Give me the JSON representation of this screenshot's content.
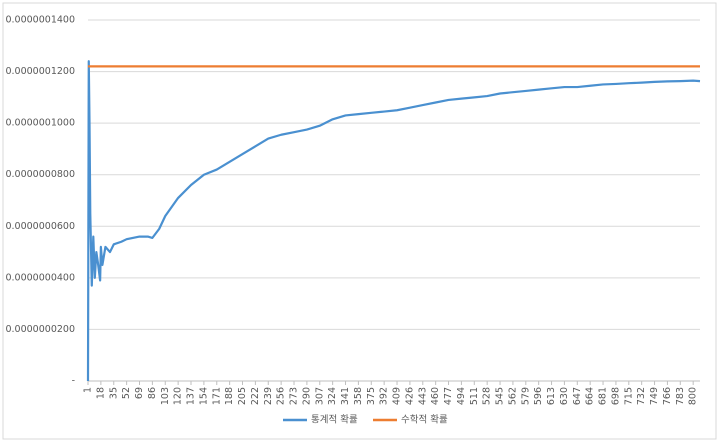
{
  "chart_data": {
    "type": "line",
    "x": [
      1,
      2,
      3,
      4,
      6,
      8,
      10,
      12,
      14,
      17,
      18,
      20,
      24,
      30,
      35,
      45,
      52,
      69,
      80,
      86,
      95,
      103,
      120,
      137,
      154,
      171,
      188,
      205,
      222,
      239,
      256,
      273,
      290,
      307,
      324,
      341,
      358,
      375,
      392,
      409,
      426,
      443,
      460,
      477,
      494,
      511,
      528,
      545,
      562,
      579,
      596,
      613,
      630,
      647,
      664,
      681,
      698,
      715,
      732,
      749,
      766,
      783,
      800,
      809
    ],
    "series": [
      {
        "name": "통계적 확률",
        "color": "#4a90d0",
        "values": [
          0,
          1.24e-07,
          1e-07,
          6.5e-08,
          3.7e-08,
          5.6e-08,
          4e-08,
          5e-08,
          4.6e-08,
          3.9e-08,
          5.2e-08,
          4.5e-08,
          5.2e-08,
          5e-08,
          5.3e-08,
          5.4e-08,
          5.5e-08,
          5.6e-08,
          5.6e-08,
          5.55e-08,
          5.9e-08,
          6.4e-08,
          7.1e-08,
          7.6e-08,
          8e-08,
          8.2e-08,
          8.5e-08,
          8.8e-08,
          9.1e-08,
          9.4e-08,
          9.55e-08,
          9.65e-08,
          9.75e-08,
          9.9e-08,
          1.015e-07,
          1.03e-07,
          1.035e-07,
          1.04e-07,
          1.045e-07,
          1.05e-07,
          1.06e-07,
          1.07e-07,
          1.08e-07,
          1.09e-07,
          1.095e-07,
          1.1e-07,
          1.105e-07,
          1.115e-07,
          1.12e-07,
          1.125e-07,
          1.13e-07,
          1.135e-07,
          1.14e-07,
          1.14e-07,
          1.145e-07,
          1.15e-07,
          1.152e-07,
          1.155e-07,
          1.157e-07,
          1.16e-07,
          1.162e-07,
          1.163e-07,
          1.165e-07,
          1.163e-07
        ]
      },
      {
        "name": "수학적 확률",
        "color": "#ed7d31",
        "values": [
          1.22e-07,
          1.22e-07,
          1.22e-07,
          1.22e-07,
          1.22e-07,
          1.22e-07,
          1.22e-07,
          1.22e-07,
          1.22e-07,
          1.22e-07,
          1.22e-07,
          1.22e-07,
          1.22e-07,
          1.22e-07,
          1.22e-07,
          1.22e-07,
          1.22e-07,
          1.22e-07,
          1.22e-07,
          1.22e-07,
          1.22e-07,
          1.22e-07,
          1.22e-07,
          1.22e-07,
          1.22e-07,
          1.22e-07,
          1.22e-07,
          1.22e-07,
          1.22e-07,
          1.22e-07,
          1.22e-07,
          1.22e-07,
          1.22e-07,
          1.22e-07,
          1.22e-07,
          1.22e-07,
          1.22e-07,
          1.22e-07,
          1.22e-07,
          1.22e-07,
          1.22e-07,
          1.22e-07,
          1.22e-07,
          1.22e-07,
          1.22e-07,
          1.22e-07,
          1.22e-07,
          1.22e-07,
          1.22e-07,
          1.22e-07,
          1.22e-07,
          1.22e-07,
          1.22e-07,
          1.22e-07,
          1.22e-07,
          1.22e-07,
          1.22e-07,
          1.22e-07,
          1.22e-07,
          1.22e-07,
          1.22e-07,
          1.22e-07,
          1.22e-07,
          1.22e-07
        ]
      }
    ],
    "xlim": [
      1,
      809
    ],
    "xticks": [
      1,
      18,
      35,
      52,
      69,
      86,
      103,
      120,
      137,
      154,
      171,
      188,
      205,
      222,
      239,
      256,
      273,
      290,
      307,
      324,
      341,
      358,
      375,
      392,
      409,
      426,
      443,
      460,
      477,
      494,
      511,
      528,
      545,
      562,
      579,
      596,
      613,
      630,
      647,
      664,
      681,
      698,
      715,
      732,
      749,
      766,
      783,
      800
    ],
    "ylim": [
      0,
      1.4e-07
    ],
    "yticks": [
      {
        "value": 0,
        "label": "-"
      },
      {
        "value": 2e-08,
        "label": "0.0000000200"
      },
      {
        "value": 4e-08,
        "label": "0.0000000400"
      },
      {
        "value": 6e-08,
        "label": "0.0000000600"
      },
      {
        "value": 8e-08,
        "label": "0.0000000800"
      },
      {
        "value": 1e-07,
        "label": "0.0000001000"
      },
      {
        "value": 1.2e-07,
        "label": "0.0000001200"
      },
      {
        "value": 1.4e-07,
        "label": "0.0000001400"
      }
    ],
    "grid": true,
    "legend": "bottom"
  }
}
